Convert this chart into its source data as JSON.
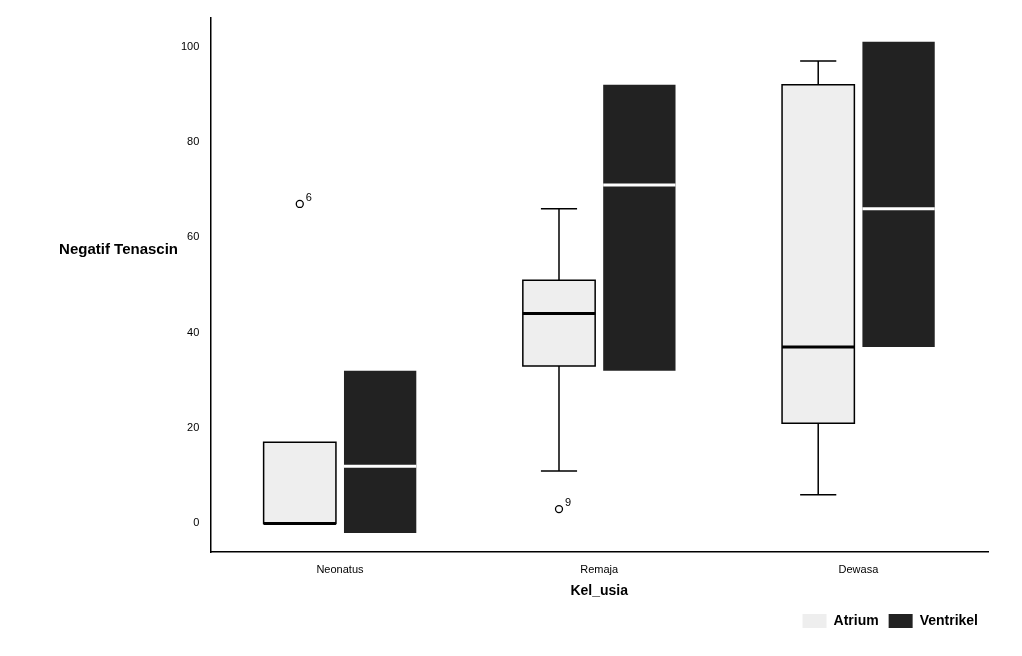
{
  "chart_data": {
    "type": "box",
    "xlabel": "Kel_usia",
    "ylabel": "Negatif Tenascin",
    "categories": [
      "Neonatus",
      "Remaja",
      "Dewasa"
    ],
    "ylim": [
      -6,
      106
    ],
    "yticks": [
      0,
      20,
      40,
      60,
      80,
      100
    ],
    "grid": false,
    "legend": "bottom right",
    "series": [
      {
        "name": "Atrium",
        "color": "#eeeeee",
        "boxes": [
          {
            "low": 0,
            "q1": 0,
            "median": 0,
            "q3": 17,
            "high": 17,
            "outliers": [
              67
            ]
          },
          {
            "low": 11,
            "q1": 33,
            "median": 44,
            "q3": 51,
            "high": 66,
            "outliers": [
              3
            ]
          },
          {
            "low": 6,
            "q1": 21,
            "median": 37,
            "q3": 92,
            "high": 97
          }
        ]
      },
      {
        "name": "Ventrikel",
        "color": "#222222",
        "boxes": [
          {
            "low": -2,
            "q1": -2,
            "median": 12,
            "q3": 32,
            "high": 32
          },
          {
            "low": 32,
            "q1": 32,
            "median": 71,
            "q3": 92,
            "high": 92
          },
          {
            "low": 37,
            "q1": 37,
            "median": 66,
            "q3": 101,
            "high": 101
          }
        ]
      }
    ],
    "annotations": [
      "6",
      "9"
    ]
  }
}
